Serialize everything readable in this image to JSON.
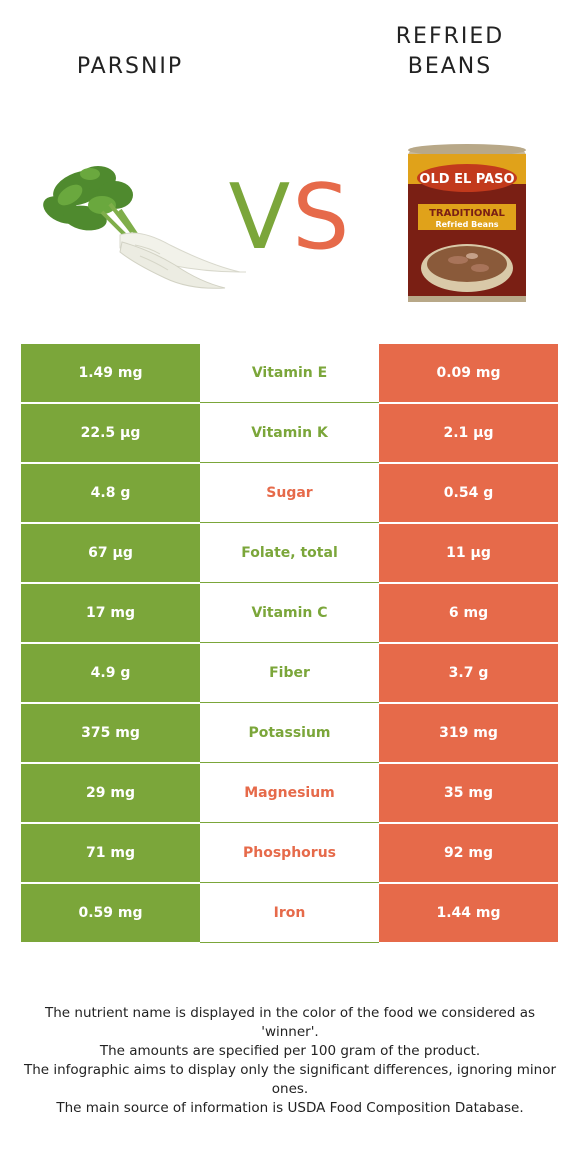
{
  "left_food": {
    "name": "PARSNIP",
    "color": "#7ba63a",
    "image_icon": "parsnip-icon"
  },
  "right_food": {
    "name": "REFRIED\nBEANS",
    "color": "#e66a4a",
    "image_icon": "refried-beans-can-icon"
  },
  "vs": {
    "v": "V",
    "s": "S"
  },
  "can_label": {
    "brand": "OLD EL PASO",
    "line1": "TRADITIONAL",
    "line2": "Refried Beans"
  },
  "nutrients": [
    {
      "name": "Vitamin E",
      "left": "1.49 mg",
      "right": "0.09 mg",
      "winner": "left"
    },
    {
      "name": "Vitamin K",
      "left": "22.5 µg",
      "right": "2.1 µg",
      "winner": "left"
    },
    {
      "name": "Sugar",
      "left": "4.8 g",
      "right": "0.54 g",
      "winner": "right"
    },
    {
      "name": "Folate, total",
      "left": "67 µg",
      "right": "11 µg",
      "winner": "left"
    },
    {
      "name": "Vitamin C",
      "left": "17 mg",
      "right": "6 mg",
      "winner": "left"
    },
    {
      "name": "Fiber",
      "left": "4.9 g",
      "right": "3.7 g",
      "winner": "left"
    },
    {
      "name": "Potassium",
      "left": "375 mg",
      "right": "319 mg",
      "winner": "left"
    },
    {
      "name": "Magnesium",
      "left": "29 mg",
      "right": "35 mg",
      "winner": "right"
    },
    {
      "name": "Phosphorus",
      "left": "71 mg",
      "right": "92 mg",
      "winner": "right"
    },
    {
      "name": "Iron",
      "left": "0.59 mg",
      "right": "1.44 mg",
      "winner": "right"
    }
  ],
  "footnote": [
    "The nutrient name is displayed in the color of the food we considered as 'winner'.",
    "The amounts are specified per 100 gram of the product.",
    "The infographic aims to display only the significant differences, ignoring minor ones.",
    "The main source of information is USDA Food Composition Database."
  ]
}
